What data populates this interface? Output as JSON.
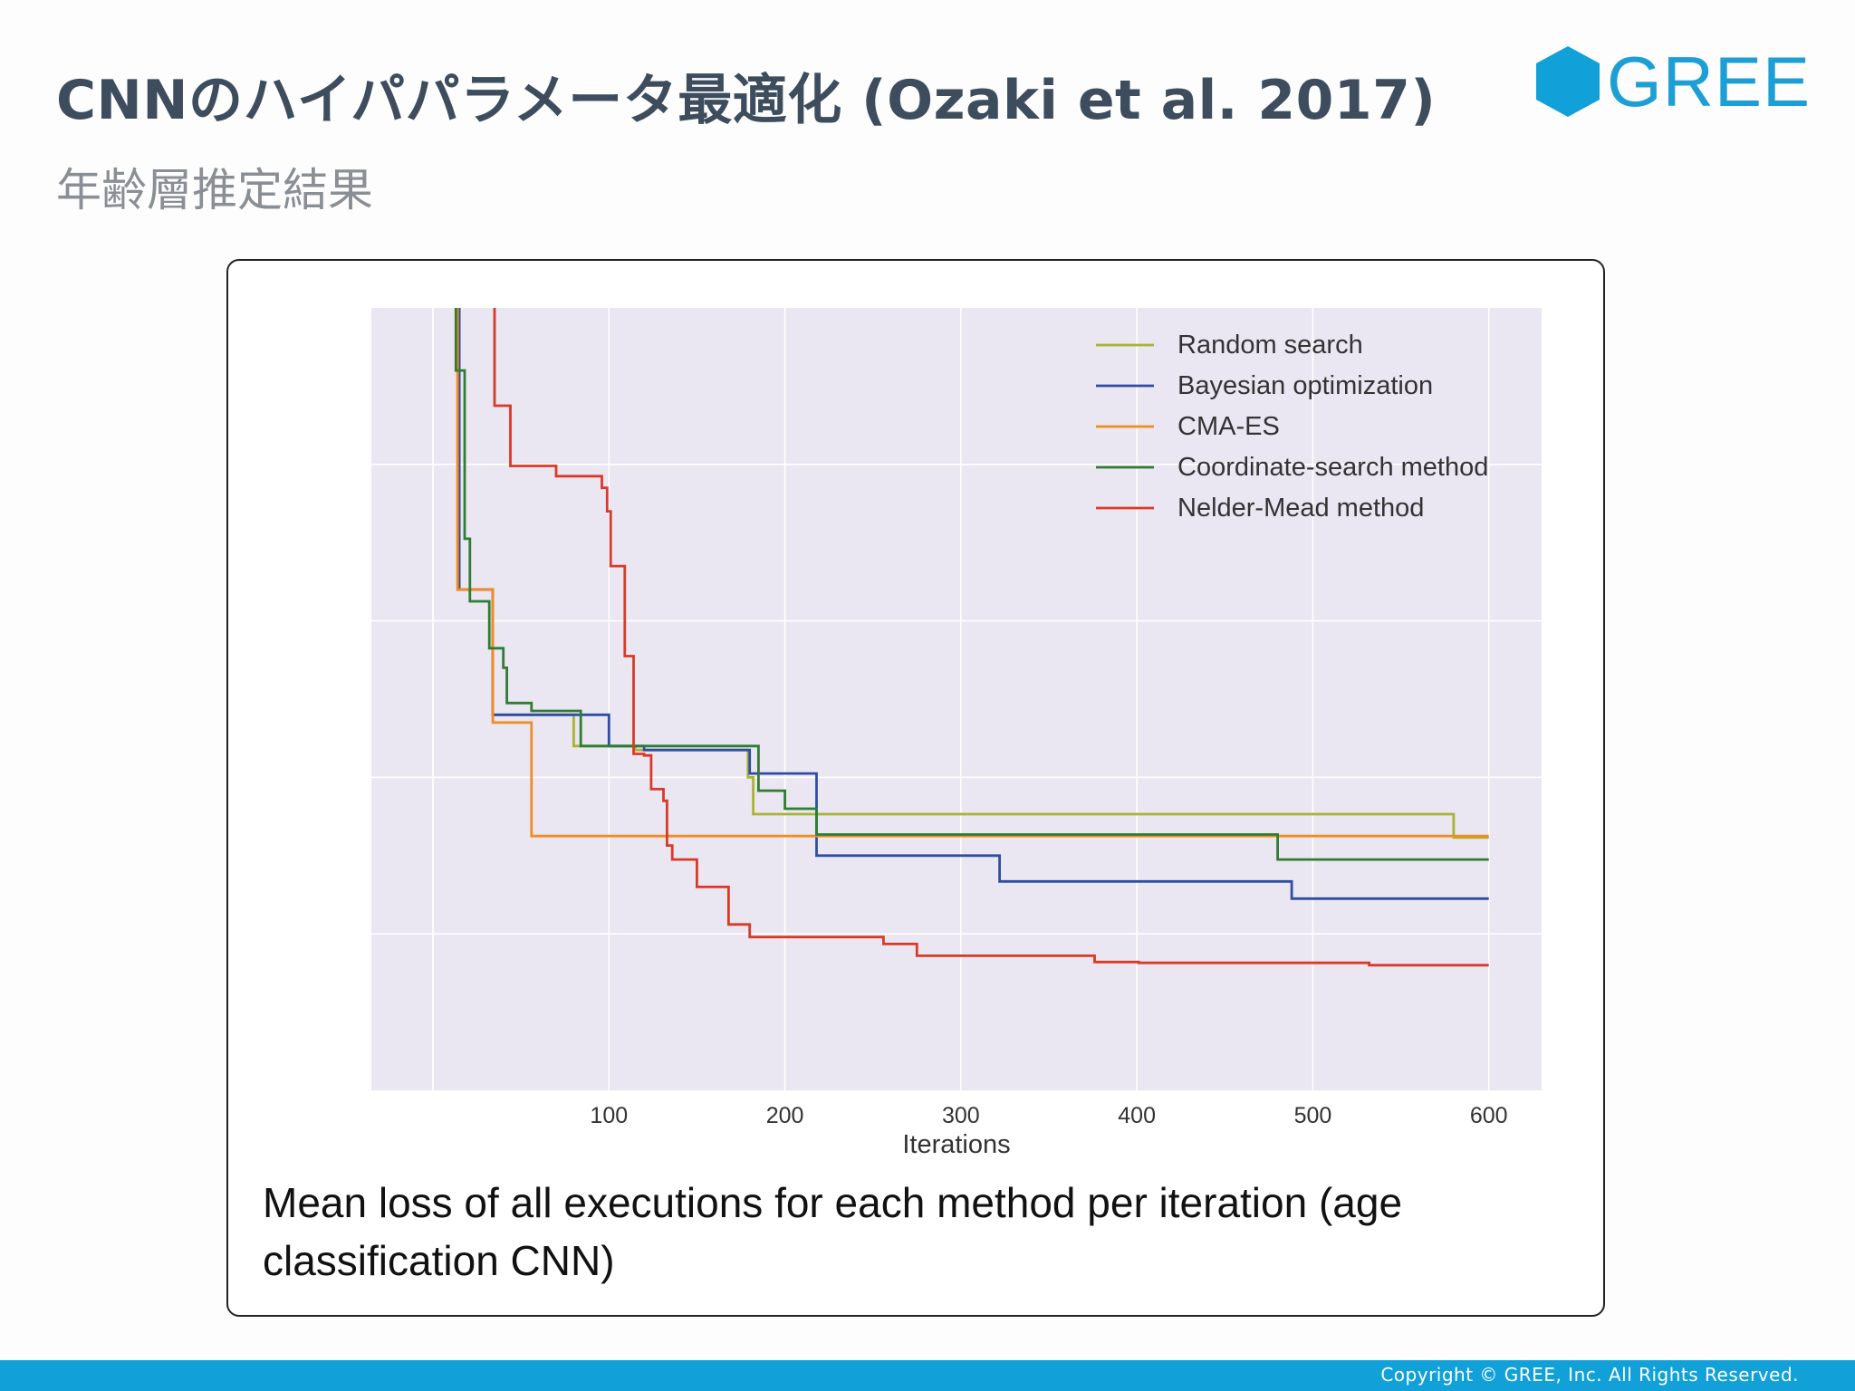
{
  "slide": {
    "title": "CNNのハイパパラメータ最適化 (Ozaki et al. 2017)",
    "subtitle": "年齢層推定結果",
    "logo_text": "GREE",
    "caption": "Mean loss of all executions for each method per iteration (age classification CNN)",
    "footer": "Copyright © GREE, Inc. All Rights Reserved."
  },
  "colors": {
    "title": "#3e4d5e",
    "brand": "#12a0d9",
    "plot_bg": "#eae6f2",
    "grid": "#ffffff"
  },
  "chart_data": {
    "type": "line",
    "title": "",
    "xlabel": "Iterations",
    "ylabel": "",
    "xlim": [
      -35,
      630
    ],
    "ylim": [
      0,
      10
    ],
    "xticks": [
      100,
      200,
      300,
      400,
      500,
      600
    ],
    "xtick_labels": [
      "100",
      "200",
      "300",
      "400",
      "500",
      "600"
    ],
    "x_gridlines": [
      0,
      100,
      200,
      300,
      400,
      500,
      600
    ],
    "y_gridlines": [
      2,
      4,
      6,
      8
    ],
    "y_tick_labels_shown": false,
    "grid": true,
    "legend_position": "top-right",
    "series": [
      {
        "name": "Random search",
        "color": "#a8b530",
        "points": [
          [
            14,
            10.5
          ],
          [
            14,
            6.4
          ],
          [
            34,
            6.4
          ],
          [
            34,
            4.8
          ],
          [
            80,
            4.8
          ],
          [
            80,
            4.4
          ],
          [
            115,
            4.4
          ],
          [
            115,
            4.35
          ],
          [
            179,
            4.35
          ],
          [
            179,
            4.0
          ],
          [
            182,
            4.0
          ],
          [
            182,
            3.53
          ],
          [
            580,
            3.53
          ],
          [
            580,
            3.23
          ],
          [
            600,
            3.23
          ]
        ]
      },
      {
        "name": "Bayesian optimization",
        "color": "#2f4ea3",
        "points": [
          [
            15,
            10.5
          ],
          [
            15,
            6.4
          ],
          [
            34,
            6.4
          ],
          [
            34,
            4.8
          ],
          [
            100,
            4.8
          ],
          [
            100,
            4.4
          ],
          [
            120,
            4.4
          ],
          [
            120,
            4.35
          ],
          [
            180,
            4.35
          ],
          [
            180,
            4.05
          ],
          [
            218,
            4.05
          ],
          [
            218,
            3.0
          ],
          [
            322,
            3.0
          ],
          [
            322,
            2.67
          ],
          [
            488,
            2.67
          ],
          [
            488,
            2.45
          ],
          [
            600,
            2.45
          ]
        ]
      },
      {
        "name": "CMA-ES",
        "color": "#f28c1e",
        "points": [
          [
            14,
            10.5
          ],
          [
            14,
            6.4
          ],
          [
            34,
            6.4
          ],
          [
            34,
            4.7
          ],
          [
            56,
            4.7
          ],
          [
            56,
            3.25
          ],
          [
            600,
            3.25
          ]
        ]
      },
      {
        "name": "Coordinate-search method",
        "color": "#2e7d32",
        "points": [
          [
            13,
            10.5
          ],
          [
            13,
            9.2
          ],
          [
            18,
            9.2
          ],
          [
            18,
            7.05
          ],
          [
            21,
            7.05
          ],
          [
            21,
            6.25
          ],
          [
            32,
            6.25
          ],
          [
            32,
            5.65
          ],
          [
            40,
            5.65
          ],
          [
            40,
            5.4
          ],
          [
            42,
            5.4
          ],
          [
            42,
            4.95
          ],
          [
            56,
            4.95
          ],
          [
            56,
            4.85
          ],
          [
            84,
            4.85
          ],
          [
            84,
            4.4
          ],
          [
            185,
            4.4
          ],
          [
            185,
            3.83
          ],
          [
            200,
            3.83
          ],
          [
            200,
            3.6
          ],
          [
            218,
            3.6
          ],
          [
            218,
            3.27
          ],
          [
            480,
            3.27
          ],
          [
            480,
            2.95
          ],
          [
            600,
            2.95
          ]
        ]
      },
      {
        "name": "Nelder-Mead method",
        "color": "#d93a28",
        "points": [
          [
            35,
            10.5
          ],
          [
            35,
            8.75
          ],
          [
            44,
            8.75
          ],
          [
            44,
            7.98
          ],
          [
            70,
            7.98
          ],
          [
            70,
            7.85
          ],
          [
            96,
            7.85
          ],
          [
            96,
            7.7
          ],
          [
            99,
            7.7
          ],
          [
            99,
            7.4
          ],
          [
            101,
            7.4
          ],
          [
            101,
            6.7
          ],
          [
            109,
            6.7
          ],
          [
            109,
            5.55
          ],
          [
            114,
            5.55
          ],
          [
            114,
            4.3
          ],
          [
            120,
            4.3
          ],
          [
            120,
            4.28
          ],
          [
            124,
            4.28
          ],
          [
            124,
            3.85
          ],
          [
            131,
            3.85
          ],
          [
            131,
            3.7
          ],
          [
            133,
            3.7
          ],
          [
            133,
            3.13
          ],
          [
            136,
            3.13
          ],
          [
            136,
            2.95
          ],
          [
            150,
            2.95
          ],
          [
            150,
            2.6
          ],
          [
            168,
            2.6
          ],
          [
            168,
            2.12
          ],
          [
            180,
            2.12
          ],
          [
            180,
            1.96
          ],
          [
            256,
            1.96
          ],
          [
            256,
            1.87
          ],
          [
            275,
            1.87
          ],
          [
            275,
            1.72
          ],
          [
            376,
            1.72
          ],
          [
            376,
            1.64
          ],
          [
            401,
            1.64
          ],
          [
            401,
            1.63
          ],
          [
            532,
            1.63
          ],
          [
            532,
            1.6
          ],
          [
            600,
            1.6
          ]
        ]
      }
    ]
  }
}
